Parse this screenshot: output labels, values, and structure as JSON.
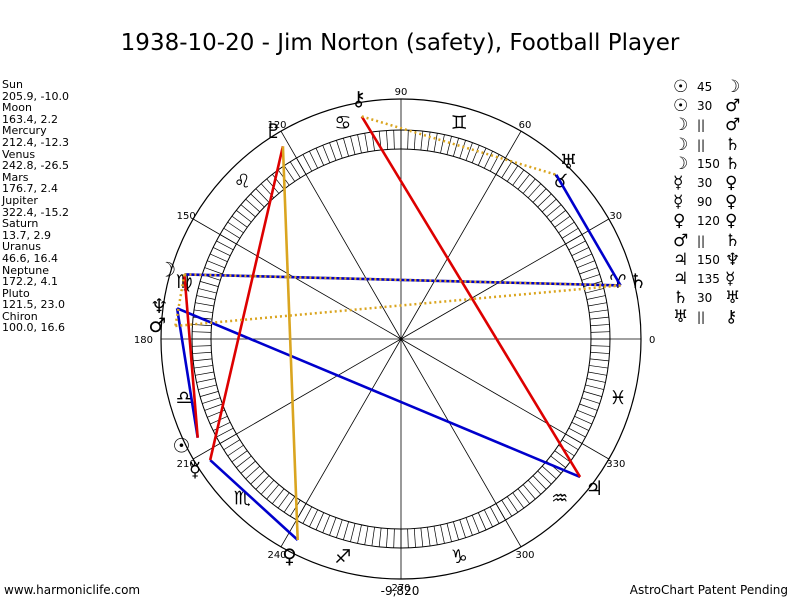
{
  "title": "1938-10-20 - Jim Norton (safety), Football Player",
  "planets": [
    {
      "name": "Sun",
      "coords": "205.9, -10.0"
    },
    {
      "name": "Moon",
      "coords": "163.4, 2.2"
    },
    {
      "name": "Mercury",
      "coords": "212.4, -12.3"
    },
    {
      "name": "Venus",
      "coords": "242.8, -26.5"
    },
    {
      "name": "Mars",
      "coords": "176.7, 2.4"
    },
    {
      "name": "Jupiter",
      "coords": "322.4, -15.2"
    },
    {
      "name": "Saturn",
      "coords": "13.7, 2.9"
    },
    {
      "name": "Uranus",
      "coords": "46.6, 16.4"
    },
    {
      "name": "Neptune",
      "coords": "172.2, 4.1"
    },
    {
      "name": "Pluto",
      "coords": "121.5, 23.0"
    },
    {
      "name": "Chiron",
      "coords": "100.0, 16.6"
    }
  ],
  "aspects": [
    {
      "p1": "☉",
      "aspect": "45",
      "p2": "☽"
    },
    {
      "p1": "☉",
      "aspect": "30",
      "p2": "♂"
    },
    {
      "p1": "☽",
      "aspect": "||",
      "p2": "♂"
    },
    {
      "p1": "☽",
      "aspect": "||",
      "p2": "♄"
    },
    {
      "p1": "☽",
      "aspect": "150",
      "p2": "♄"
    },
    {
      "p1": "☿",
      "aspect": "30",
      "p2": "♀"
    },
    {
      "p1": "☿",
      "aspect": "90",
      "p2": "♀"
    },
    {
      "p1": "♀",
      "aspect": "120",
      "p2": "♀"
    },
    {
      "p1": "♂",
      "aspect": "||",
      "p2": "♄"
    },
    {
      "p1": "♃",
      "aspect": "150",
      "p2": "♆"
    },
    {
      "p1": "♃",
      "aspect": "135",
      "p2": "☿"
    },
    {
      "p1": "♄",
      "aspect": "30",
      "p2": "♅"
    },
    {
      "p1": "♅",
      "aspect": "||",
      "p2": "⚷"
    }
  ],
  "degree_labels": [
    "0",
    "30",
    "60",
    "90",
    "120",
    "150",
    "180",
    "210",
    "240",
    "270",
    "300",
    "330"
  ],
  "zodiac_signs": [
    "♈",
    "♉",
    "♊",
    "♋",
    "♌",
    "♍",
    "♎",
    "♏",
    "♐",
    "♑",
    "♒",
    "♓"
  ],
  "chart_planets": [
    {
      "symbol": "☉",
      "longitude": 205.9,
      "name": "sun"
    },
    {
      "symbol": "☽",
      "longitude": 163.4,
      "name": "moon"
    },
    {
      "symbol": "☿",
      "longitude": 212.4,
      "name": "mercury"
    },
    {
      "symbol": "♀",
      "longitude": 242.8,
      "name": "venus"
    },
    {
      "symbol": "♂",
      "longitude": 176.7,
      "name": "mars"
    },
    {
      "symbol": "♃",
      "longitude": 322.4,
      "name": "jupiter"
    },
    {
      "symbol": "♄",
      "longitude": 13.7,
      "name": "saturn"
    },
    {
      "symbol": "♅",
      "longitude": 46.6,
      "name": "uranus"
    },
    {
      "symbol": "♆",
      "longitude": 172.2,
      "name": "neptune"
    },
    {
      "symbol": "♇",
      "longitude": 121.5,
      "name": "pluto"
    },
    {
      "symbol": "⚷",
      "longitude": 100.0,
      "name": "chiron"
    }
  ],
  "aspect_lines": [
    {
      "from": 163.4,
      "to": 13.7,
      "color": "#0000cc",
      "style": "solid"
    },
    {
      "from": 172.2,
      "to": 322.4,
      "color": "#0000cc",
      "style": "solid"
    },
    {
      "from": 205.9,
      "to": 172.2,
      "color": "#0000cc",
      "style": "solid"
    },
    {
      "from": 212.4,
      "to": 242.8,
      "color": "#0000cc",
      "style": "solid"
    },
    {
      "from": 46.6,
      "to": 13.7,
      "color": "#0000cc",
      "style": "solid"
    },
    {
      "from": 212.4,
      "to": 121.5,
      "color": "#dd0000",
      "style": "solid"
    },
    {
      "from": 100.0,
      "to": 322.4,
      "color": "#dd0000",
      "style": "solid"
    },
    {
      "from": 163.4,
      "to": 205.9,
      "color": "#dd0000",
      "style": "solid"
    },
    {
      "from": 121.5,
      "to": 242.8,
      "color": "#daa520",
      "style": "solid"
    },
    {
      "from": 100.0,
      "to": 46.6,
      "color": "#daa520",
      "style": "dotted"
    },
    {
      "from": 163.4,
      "to": 13.7,
      "color": "#daa520",
      "style": "dotted"
    },
    {
      "from": 176.7,
      "to": 13.7,
      "color": "#daa520",
      "style": "dotted"
    },
    {
      "from": 163.4,
      "to": 176.7,
      "color": "#daa520",
      "style": "dotted"
    }
  ],
  "bottom_value": "-9,820",
  "footer_left": "www.harmoniclife.com",
  "footer_right": "AstroChart Patent Pending"
}
